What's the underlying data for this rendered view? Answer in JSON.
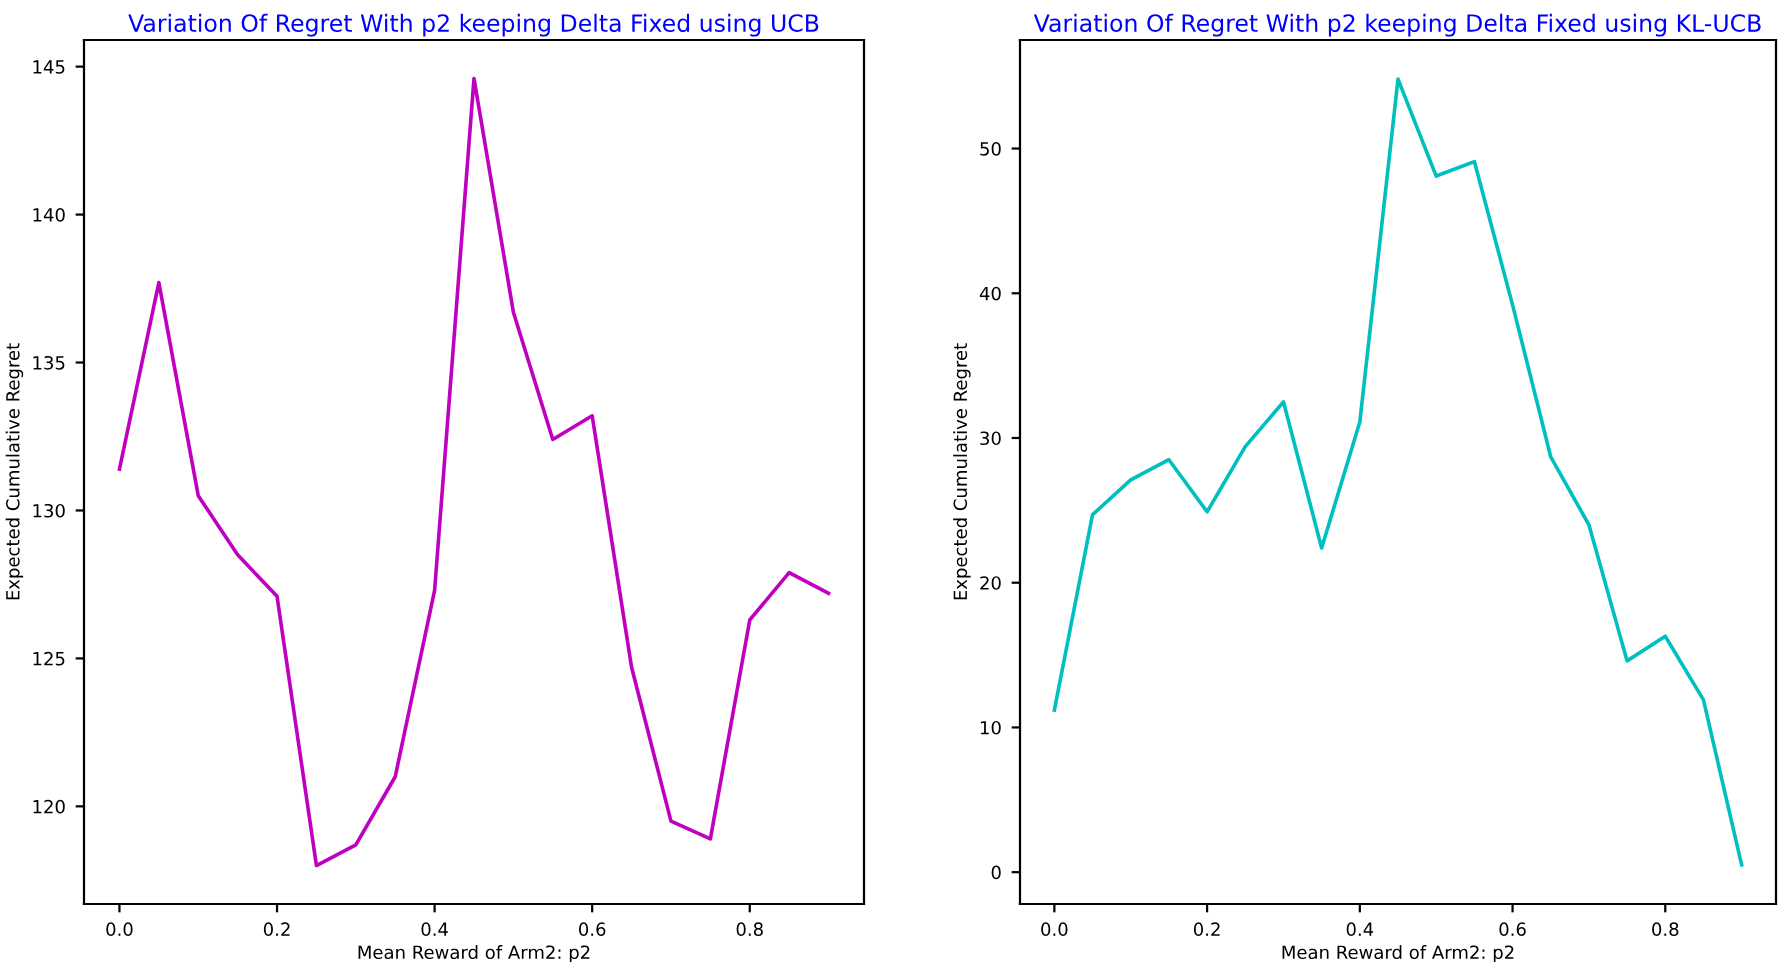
{
  "chart_data": [
    {
      "type": "line",
      "title": "Variation Of Regret With p2 keeping Delta Fixed using UCB",
      "xlabel": "Mean Reward of Arm2: p2",
      "ylabel": "Expected Cumulative Regret",
      "x": [
        0.0,
        0.05,
        0.1,
        0.15,
        0.2,
        0.25,
        0.3,
        0.35,
        0.4,
        0.45,
        0.5,
        0.55,
        0.6,
        0.65,
        0.7,
        0.75,
        0.8,
        0.85,
        0.9
      ],
      "series": [
        {
          "color": "#bf00bf",
          "values": [
            131.4,
            137.7,
            130.5,
            128.5,
            127.1,
            118.0,
            118.7,
            121.0,
            127.3,
            144.6,
            136.7,
            132.4,
            133.2,
            124.7,
            119.5,
            118.9,
            126.3,
            127.9,
            127.2
          ]
        }
      ],
      "xlim": [
        -0.045,
        0.945
      ],
      "ylim": [
        116.7,
        145.9
      ],
      "xticks": [
        {
          "value": 0.0,
          "label": "0.0"
        },
        0.2,
        0.4,
        0.6,
        0.8
      ],
      "yticks": [
        120,
        125,
        130,
        135,
        140,
        145
      ],
      "grid": false,
      "legend": false
    },
    {
      "type": "line",
      "title": "Variation Of Regret With p2 keeping Delta Fixed using KL-UCB",
      "xlabel": "Mean Reward of Arm2: p2",
      "ylabel": "Expected Cumulative Regret",
      "x": [
        0.0,
        0.05,
        0.1,
        0.15,
        0.2,
        0.25,
        0.3,
        0.35,
        0.4,
        0.45,
        0.5,
        0.55,
        0.6,
        0.65,
        0.7,
        0.75,
        0.8,
        0.85,
        0.9
      ],
      "series": [
        {
          "color": "#00bfbf",
          "values": [
            11.2,
            24.7,
            27.1,
            28.5,
            24.9,
            29.4,
            32.5,
            22.4,
            31.1,
            54.8,
            48.1,
            49.1,
            39.2,
            28.7,
            24.0,
            14.6,
            16.3,
            11.9,
            0.5
          ]
        }
      ],
      "xlim": [
        -0.045,
        0.945
      ],
      "ylim": [
        -2.2,
        57.5
      ],
      "xticks": [
        {
          "value": 0.0,
          "label": "0.0"
        },
        0.2,
        0.4,
        0.6,
        0.8
      ],
      "yticks": [
        0,
        10,
        20,
        30,
        40,
        50
      ],
      "grid": false,
      "legend": false
    }
  ]
}
